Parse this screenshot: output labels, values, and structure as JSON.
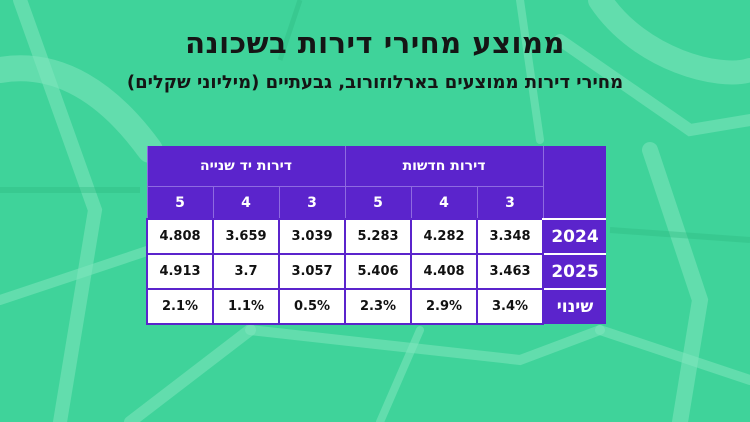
{
  "title": "ממוצע מחירי דירות בשכונה",
  "subtitle": "מחירי דירות ממוצעים בארלוזורוב, גבעתיים (מיליוני שקלים)",
  "colors": {
    "background": "#3fd39a",
    "header": "#5b24cc",
    "cell": "#ffffff",
    "text": "#111111"
  },
  "chart_data": {
    "type": "table",
    "title": "ממוצע מחירי דירות בשכונה",
    "subtitle": "מחירי דירות ממוצעים בארלוזורוב, גבעתיים (מיליוני שקלים)",
    "groups": [
      {
        "label": "דירות חדשות",
        "rooms": [
          "3",
          "4",
          "5"
        ]
      },
      {
        "label": "דירות יד שנייה",
        "rooms": [
          "3",
          "4",
          "5"
        ]
      }
    ],
    "rows": [
      {
        "label": "2024",
        "values": [
          "3.348",
          "4.282",
          "5.283",
          "3.039",
          "3.659",
          "4.808"
        ]
      },
      {
        "label": "2025",
        "values": [
          "3.463",
          "4.408",
          "5.406",
          "3.057",
          "3.7",
          "4.913"
        ]
      },
      {
        "label": "שינוי",
        "values": [
          "3.4%",
          "2.9%",
          "2.3%",
          "0.5%",
          "1.1%",
          "2.1%"
        ]
      }
    ]
  }
}
